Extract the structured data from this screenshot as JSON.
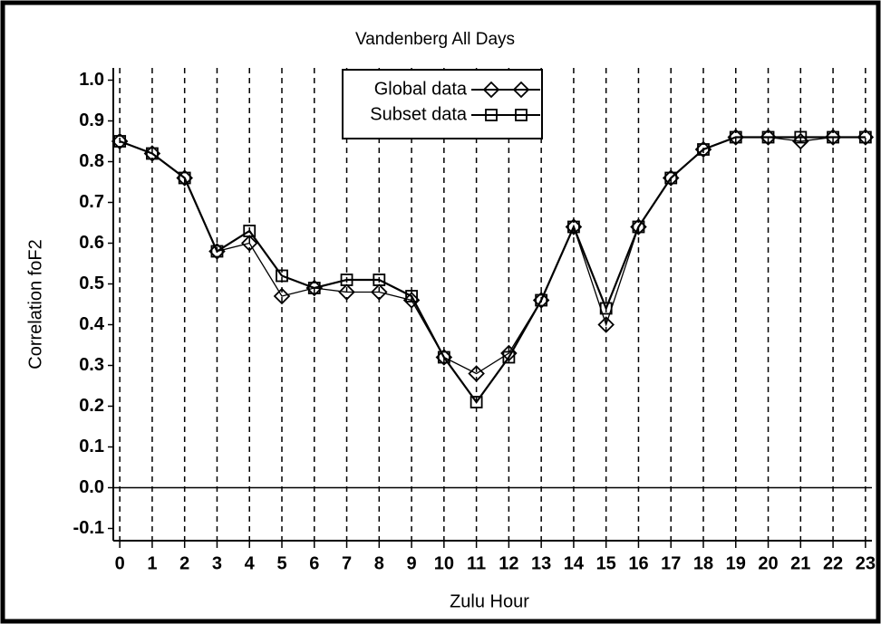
{
  "chart_data": {
    "type": "line",
    "title": "Vandenberg All Days",
    "xlabel": "Zulu Hour",
    "ylabel": "Correlation foF2",
    "x": [
      0,
      1,
      2,
      3,
      4,
      5,
      6,
      7,
      8,
      9,
      10,
      11,
      12,
      13,
      14,
      15,
      16,
      17,
      18,
      19,
      20,
      21,
      22,
      23
    ],
    "series": [
      {
        "name": "Global data",
        "color": "#000000",
        "marker": "diamond",
        "values": [
          0.85,
          0.82,
          0.76,
          0.58,
          0.6,
          0.47,
          0.49,
          0.48,
          0.48,
          0.46,
          0.32,
          0.28,
          0.33,
          0.46,
          0.64,
          0.4,
          0.64,
          0.76,
          0.83,
          0.86,
          0.86,
          0.85,
          0.86,
          0.86
        ]
      },
      {
        "name": "Subset data",
        "color": "#000000",
        "marker": "square",
        "values": [
          0.85,
          0.82,
          0.76,
          0.58,
          0.63,
          0.52,
          0.49,
          0.51,
          0.51,
          0.47,
          0.32,
          0.21,
          0.32,
          0.46,
          0.64,
          0.44,
          0.64,
          0.76,
          0.83,
          0.86,
          0.86,
          0.86,
          0.86,
          0.86
        ]
      }
    ],
    "xlim": [
      -0.2,
      23.2
    ],
    "xticks": [
      0,
      1,
      2,
      3,
      4,
      5,
      6,
      7,
      8,
      9,
      10,
      11,
      12,
      13,
      14,
      15,
      16,
      17,
      18,
      19,
      20,
      21,
      22,
      23
    ],
    "ylim": [
      -0.13,
      1.03
    ],
    "yticks": [
      {
        "value": 1,
        "label": "1.0"
      },
      0.9,
      0.8,
      0.7,
      0.6,
      0.5,
      0.4,
      0.3,
      0.2,
      0.1,
      {
        "value": 0,
        "label": "0.0"
      },
      -0.1
    ],
    "grid": "x",
    "zero_line": true,
    "legend": "top"
  }
}
